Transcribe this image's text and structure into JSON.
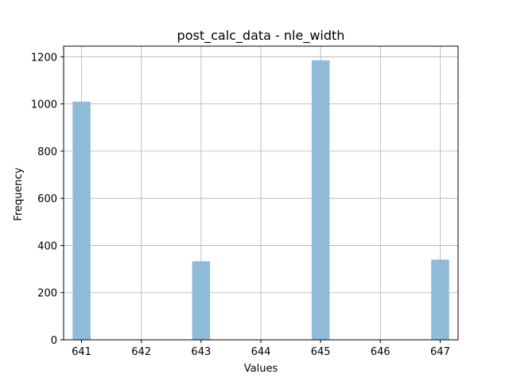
{
  "chart_data": {
    "type": "bar",
    "title": "post_calc_data - nle_width",
    "xlabel": "Values",
    "ylabel": "Frequency",
    "x_ticks": [
      641,
      642,
      643,
      644,
      645,
      646,
      647
    ],
    "y_ticks": [
      0,
      200,
      400,
      600,
      800,
      1000,
      1200
    ],
    "xlim": [
      640.7,
      647.3
    ],
    "ylim": [
      0,
      1245
    ],
    "bin_width": 0.3,
    "bars": [
      {
        "x": 641,
        "value": 1010
      },
      {
        "x": 643,
        "value": 333
      },
      {
        "x": 645,
        "value": 1185
      },
      {
        "x": 647,
        "value": 340
      }
    ],
    "grid": true,
    "bar_color": "#8fbbd9",
    "legend": "none"
  }
}
